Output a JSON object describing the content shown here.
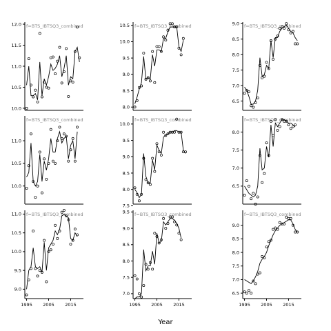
{
  "figure": {
    "xlabel": "Year",
    "strip_label": "f=BTS_IBTSQ3_combined"
  },
  "chart_data": [
    {
      "type": "line",
      "panel": 1,
      "ylim": [
        9.95,
        12.05
      ],
      "yticks": [
        10.0,
        10.5,
        11.0,
        11.5,
        12.0
      ],
      "xticks": [],
      "x": [
        1995,
        1996,
        1997,
        1998,
        1999,
        2000,
        2001,
        2002,
        2003,
        2004,
        2005,
        2006,
        2007,
        2008,
        2009,
        2010,
        2011,
        2012,
        2013,
        2014,
        2015,
        2016,
        2017,
        2018,
        2019,
        2020
      ],
      "observed": [
        10.0,
        11.18,
        10.55,
        10.27,
        10.43,
        10.15,
        11.78,
        10.27,
        10.62,
        10.5,
        10.48,
        11.2,
        11.22,
        10.82,
        11.12,
        11.45,
        10.6,
        10.87,
        11.42,
        10.28,
        10.65,
        10.62,
        11.35,
        11.93,
        11.2,
        null
      ],
      "fitted": [
        10.55,
        11.0,
        10.3,
        10.3,
        10.35,
        10.2,
        11.1,
        10.3,
        10.7,
        10.55,
        10.75,
        11.05,
        10.9,
        10.95,
        11.05,
        11.25,
        10.75,
        10.95,
        11.25,
        10.55,
        10.75,
        10.7,
        11.35,
        11.45,
        11.1,
        null
      ]
    },
    {
      "type": "line",
      "panel": 2,
      "ylim": [
        7.9,
        10.6
      ],
      "yticks": [
        8.0,
        8.5,
        9.0,
        9.5,
        10.0,
        10.5
      ],
      "xticks": [],
      "x": [
        1995,
        1996,
        1997,
        1998,
        1999,
        2000,
        2001,
        2002,
        2003,
        2004,
        2005,
        2006,
        2007,
        2008,
        2009,
        2010,
        2011,
        2012,
        2013,
        2014,
        2015,
        2016,
        2017,
        2018,
        2019,
        2020
      ],
      "observed": [
        8.0,
        8.2,
        8.6,
        8.65,
        9.65,
        8.85,
        8.9,
        8.8,
        9.7,
        8.75,
        9.85,
        9.85,
        9.7,
        10.15,
        10.05,
        10.35,
        10.55,
        10.55,
        10.45,
        10.45,
        9.8,
        9.6,
        10.1,
        null,
        null,
        null
      ],
      "fitted": [
        8.1,
        8.3,
        8.55,
        8.75,
        9.55,
        8.85,
        8.9,
        8.85,
        9.6,
        9.25,
        9.75,
        9.75,
        9.7,
        10.1,
        10.1,
        10.3,
        10.45,
        10.45,
        10.45,
        10.45,
        9.85,
        9.7,
        10.05,
        null,
        null,
        null
      ]
    },
    {
      "type": "line",
      "panel": 3,
      "ylim": [
        6.2,
        9.05
      ],
      "yticks": [
        6.5,
        7.0,
        7.5,
        8.0,
        8.5,
        9.0
      ],
      "xticks": [],
      "x": [
        1995,
        1996,
        1997,
        1998,
        1999,
        2000,
        2001,
        2002,
        2003,
        2004,
        2005,
        2006,
        2007,
        2008,
        2009,
        2010,
        2011,
        2012,
        2013,
        2014,
        2015,
        2016,
        2017,
        2018,
        2019,
        2020
      ],
      "observed": [
        6.75,
        6.85,
        6.8,
        6.35,
        6.3,
        6.45,
        6.6,
        7.65,
        7.25,
        7.3,
        7.75,
        7.55,
        8.45,
        7.85,
        8.5,
        8.6,
        8.85,
        8.9,
        8.85,
        9.0,
        8.8,
        8.7,
        8.75,
        8.35,
        8.35,
        null
      ],
      "fitted": [
        6.95,
        6.85,
        6.65,
        6.4,
        6.4,
        6.5,
        6.85,
        7.9,
        7.3,
        7.35,
        7.65,
        7.55,
        8.45,
        7.9,
        8.55,
        8.55,
        8.75,
        8.85,
        8.9,
        8.95,
        8.85,
        8.75,
        8.7,
        8.55,
        8.45,
        null
      ]
    },
    {
      "type": "line",
      "panel": 4,
      "ylim": [
        9.6,
        11.55
      ],
      "yticks": [
        10.0,
        10.5,
        11.0
      ],
      "xticks": [],
      "x": [
        1995,
        1996,
        1997,
        1998,
        1999,
        2000,
        2001,
        2002,
        2003,
        2004,
        2005,
        2006,
        2007,
        2008,
        2009,
        2010,
        2011,
        2012,
        2013,
        2014,
        2015,
        2016,
        2017,
        2018,
        2019,
        2020
      ],
      "observed": [
        9.95,
        10.45,
        11.15,
        10.1,
        9.75,
        10.0,
        10.75,
        9.85,
        10.6,
        10.15,
        10.5,
        11.25,
        10.55,
        10.5,
        11.0,
        11.3,
        11.05,
        11.15,
        11.1,
        10.55,
        10.8,
        11.05,
        10.55,
        11.3,
        null,
        null
      ],
      "fitted": [
        10.2,
        10.3,
        10.95,
        10.1,
        10.0,
        10.1,
        10.7,
        10.1,
        10.55,
        10.35,
        10.6,
        11.05,
        10.75,
        10.75,
        11.05,
        11.2,
        10.95,
        11.05,
        11.1,
        10.6,
        10.9,
        11.0,
        10.6,
        11.2,
        null,
        null
      ]
    },
    {
      "type": "line",
      "panel": 5,
      "ylim": [
        7.55,
        10.25
      ],
      "yticks": [
        7.5,
        8.0,
        8.5,
        9.0,
        9.5,
        10.0
      ],
      "xticks": [],
      "x": [
        1995,
        1996,
        1997,
        1998,
        1999,
        2000,
        2001,
        2002,
        2003,
        2004,
        2005,
        2006,
        2007,
        2008,
        2009,
        2010,
        2011,
        2012,
        2013,
        2014,
        2015,
        2016,
        2017,
        2018,
        2019,
        2020
      ],
      "observed": [
        8.05,
        7.85,
        7.65,
        7.85,
        8.95,
        8.3,
        8.2,
        8.15,
        8.95,
        8.55,
        9.4,
        9.15,
        9.05,
        9.75,
        9.65,
        9.7,
        9.75,
        9.75,
        9.75,
        10.15,
        9.75,
        9.75,
        9.15,
        9.15,
        null,
        null
      ],
      "fitted": [
        8.0,
        7.9,
        7.75,
        7.85,
        9.1,
        8.4,
        8.2,
        8.2,
        8.9,
        8.6,
        9.35,
        9.2,
        9.1,
        9.6,
        9.65,
        9.7,
        9.75,
        9.75,
        9.8,
        9.8,
        9.75,
        9.75,
        9.2,
        9.1,
        null,
        null
      ]
    },
    {
      "type": "line",
      "panel": 6,
      "ylim": [
        6.0,
        8.45
      ],
      "yticks": [
        6.5,
        7.0,
        7.5,
        8.0
      ],
      "xticks": [],
      "x": [
        1995,
        1996,
        1997,
        1998,
        1999,
        2000,
        2001,
        2002,
        2003,
        2004,
        2005,
        2006,
        2007,
        2008,
        2009,
        2010,
        2011,
        2012,
        2013,
        2014,
        2015,
        2016,
        2017,
        2018,
        2019,
        2020
      ],
      "observed": [
        6.25,
        6.65,
        6.5,
        6.15,
        6.3,
        6.0,
        6.2,
        7.35,
        6.6,
        6.85,
        7.7,
        7.35,
        8.3,
        7.9,
        8.35,
        8.05,
        8.15,
        8.35,
        8.3,
        8.3,
        8.2,
        8.1,
        8.15,
        8.2,
        null,
        null
      ],
      "fitted": [
        6.5,
        6.4,
        6.3,
        6.25,
        6.2,
        6.25,
        6.5,
        7.55,
        6.95,
        7.0,
        7.6,
        7.3,
        8.2,
        7.6,
        8.25,
        8.15,
        8.25,
        8.35,
        8.35,
        8.3,
        8.25,
        8.25,
        8.2,
        8.15,
        null,
        null
      ]
    },
    {
      "type": "line",
      "panel": 7,
      "ylim": [
        8.75,
        11.1
      ],
      "yticks": [
        9.0,
        9.5,
        10.0,
        10.5,
        11.0
      ],
      "xticks": [
        1995,
        2005,
        2015
      ],
      "x": [
        1995,
        1996,
        1997,
        1998,
        1999,
        2000,
        2001,
        2002,
        2003,
        2004,
        2005,
        2006,
        2007,
        2008,
        2009,
        2010,
        2011,
        2012,
        2013,
        2014,
        2015,
        2016,
        2017,
        2018,
        2019,
        2020
      ],
      "observed": [
        8.85,
        9.25,
        9.55,
        10.55,
        9.55,
        9.35,
        9.5,
        9.45,
        10.3,
        9.2,
        10.0,
        10.05,
        10.2,
        10.7,
        10.35,
        10.55,
        11.05,
        11.1,
        10.95,
        10.85,
        10.2,
        10.3,
        10.6,
        10.45,
        null,
        null
      ],
      "fitted": [
        9.0,
        9.5,
        9.6,
        10.1,
        9.6,
        9.55,
        9.6,
        9.45,
        10.25,
        9.5,
        10.1,
        10.2,
        10.3,
        10.55,
        10.45,
        10.6,
        10.95,
        11.0,
        10.95,
        10.9,
        10.35,
        10.3,
        10.5,
        10.4,
        null,
        null
      ]
    },
    {
      "type": "line",
      "panel": 8,
      "ylim": [
        6.85,
        9.55
      ],
      "yticks": [
        7.0,
        7.5,
        8.0,
        8.5,
        9.0,
        9.5
      ],
      "xticks": [
        1995,
        2005,
        2015
      ],
      "x": [
        1995,
        1996,
        1997,
        1998,
        1999,
        2000,
        2001,
        2002,
        2003,
        2004,
        2005,
        2006,
        2007,
        2008,
        2009,
        2010,
        2011,
        2012,
        2013,
        2014,
        2015,
        2016,
        2017,
        2018,
        2019,
        2020
      ],
      "observed": [
        7.55,
        7.45,
        7.0,
        6.9,
        7.25,
        7.9,
        7.75,
        7.95,
        7.75,
        8.85,
        8.75,
        8.55,
        8.65,
        9.3,
        9.0,
        9.15,
        9.35,
        9.35,
        9.2,
        9.1,
        8.85,
        8.65,
        null,
        null,
        null,
        null
      ],
      "fitted": [
        6.85,
        6.9,
        6.9,
        7.0,
        8.35,
        7.7,
        7.85,
        7.85,
        8.3,
        7.9,
        8.85,
        8.55,
        8.6,
        9.2,
        9.1,
        9.2,
        9.3,
        9.3,
        9.25,
        9.15,
        9.0,
        8.7,
        null,
        null,
        null,
        null
      ]
    },
    {
      "type": "line",
      "panel": 9,
      "ylim": [
        6.3,
        9.55
      ],
      "yticks": [
        6.5,
        7.0,
        7.5,
        8.0,
        8.5,
        9.0
      ],
      "xticks": [
        1995,
        2005,
        2015
      ],
      "x": [
        1995,
        1996,
        1997,
        1998,
        1999,
        2000,
        2001,
        2002,
        2003,
        2004,
        2005,
        2006,
        2007,
        2008,
        2009,
        2010,
        2011,
        2012,
        2013,
        2014,
        2015,
        2016,
        2017,
        2018,
        2019,
        2020
      ],
      "observed": [
        6.55,
        6.5,
        6.6,
        6.5,
        6.95,
        6.85,
        7.2,
        7.25,
        7.85,
        7.8,
        8.2,
        8.4,
        8.45,
        8.85,
        8.9,
        8.85,
        9.1,
        9.05,
        9.05,
        9.3,
        9.25,
        9.25,
        9.0,
        8.75,
        8.75,
        null
      ],
      "fitted": [
        7.0,
        6.95,
        6.9,
        6.85,
        6.95,
        7.1,
        7.3,
        7.6,
        7.75,
        7.85,
        8.0,
        8.25,
        8.45,
        8.65,
        8.8,
        8.9,
        9.0,
        9.05,
        9.1,
        9.15,
        9.2,
        9.2,
        9.05,
        8.85,
        8.75,
        null
      ]
    }
  ]
}
